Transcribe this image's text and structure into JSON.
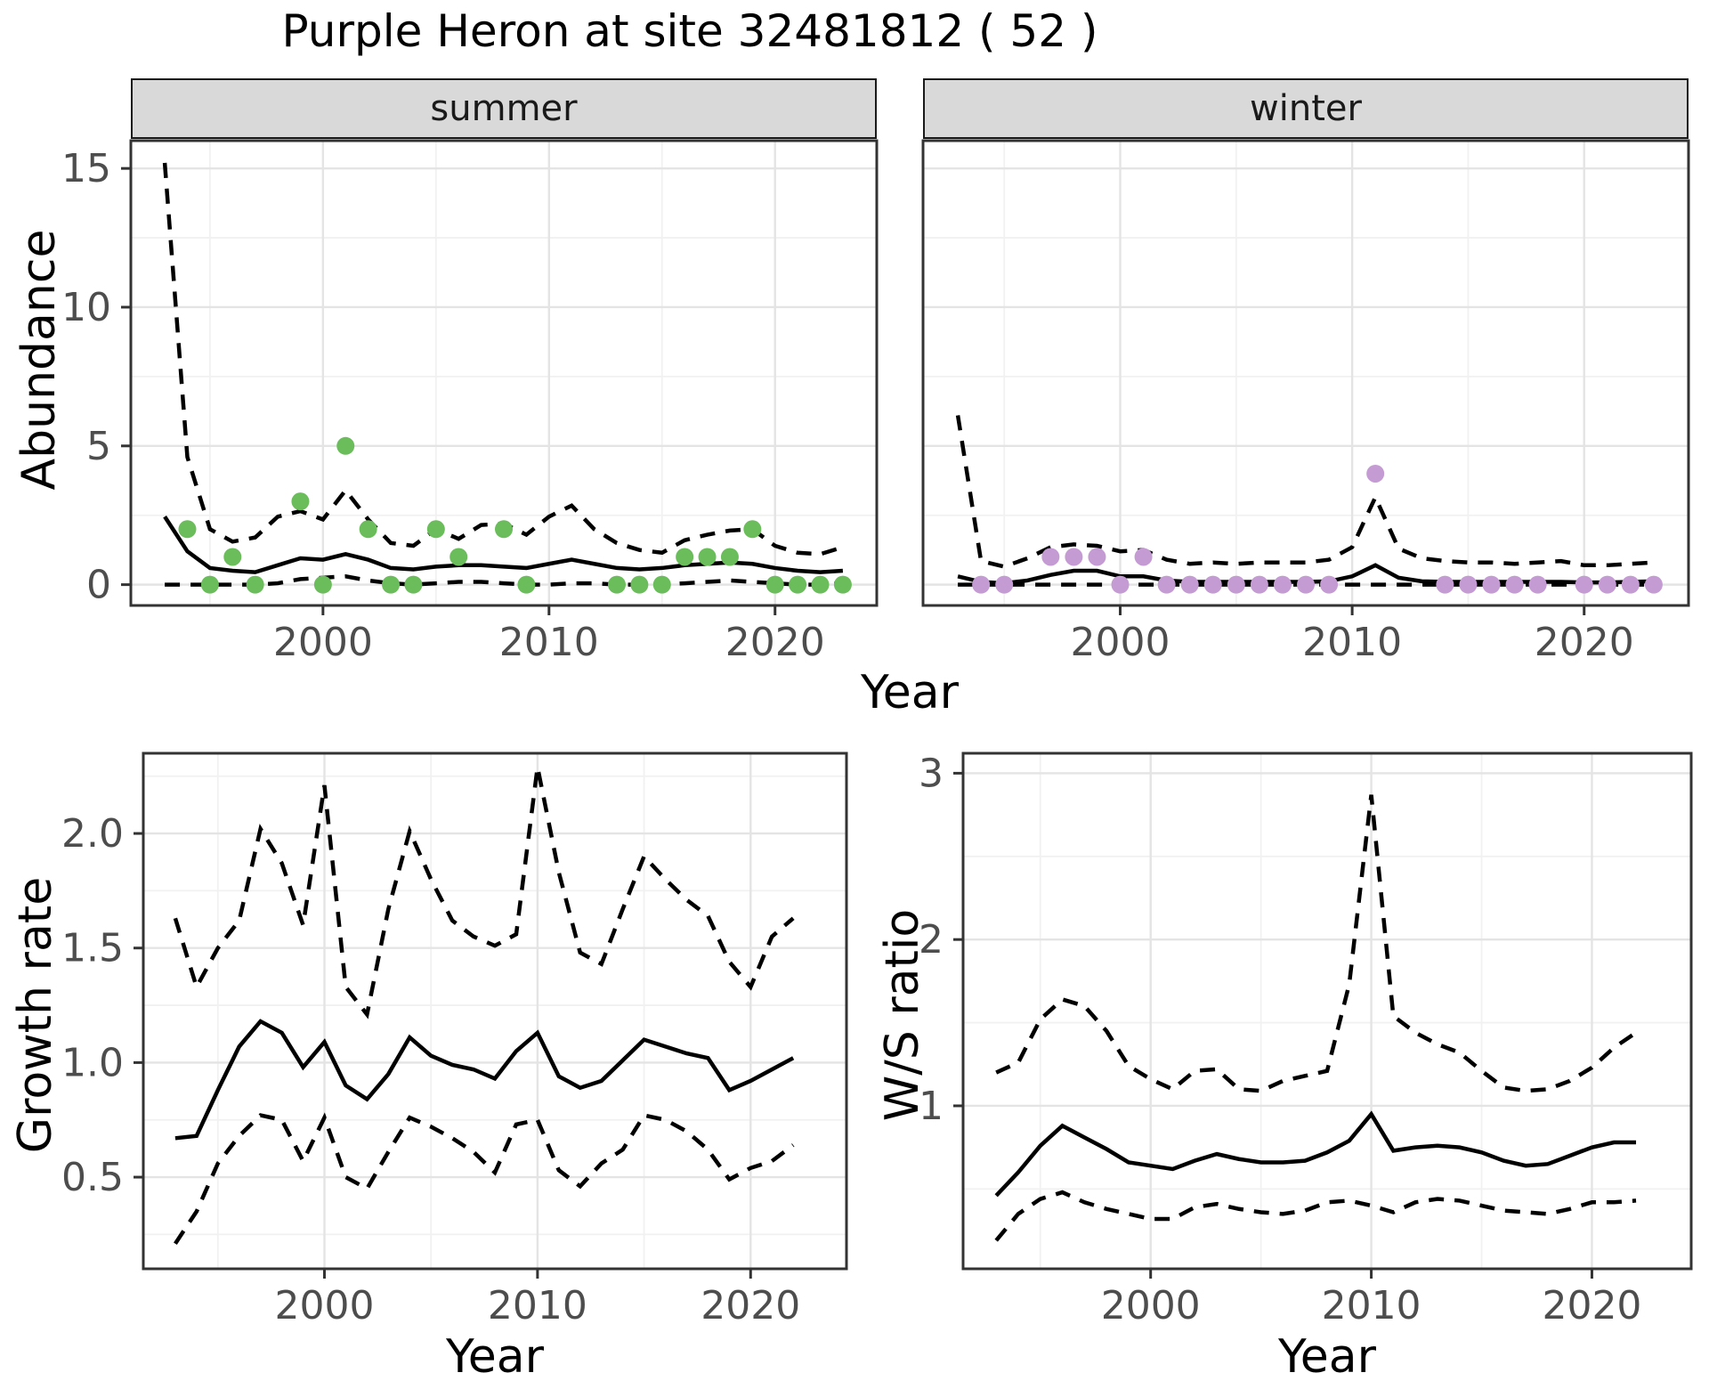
{
  "title": "Purple Heron at site 32481812 ( 52 )",
  "colors": {
    "summer_point": "#6ABD5A",
    "winter_point": "#C49BD2",
    "line": "#000000",
    "strip_background": "#D9D9D9",
    "grid_major": "#E4E4E4",
    "grid_minor": "#F1F1F1",
    "panel_border": "#333333",
    "tick_label": "#4D4D4D"
  },
  "chart_data": [
    {
      "type": "line",
      "panel": "abundance_summer",
      "facet_label": "summer",
      "xlabel": "Year",
      "ylabel": "Abundance",
      "xlim": [
        1991.5,
        2024.5
      ],
      "ylim": [
        -0.75,
        16.0
      ],
      "x_tick_values": [
        2000,
        2010,
        2020
      ],
      "x_tick_labels": [
        "2000",
        "2010",
        "2020"
      ],
      "y_tick_values": [
        0,
        5,
        10,
        15
      ],
      "y_tick_labels": [
        "0",
        "5",
        "10",
        "15"
      ],
      "grid": true,
      "legend": "none",
      "years": [
        1993,
        1994,
        1995,
        1996,
        1997,
        1998,
        1999,
        2000,
        2001,
        2002,
        2003,
        2004,
        2005,
        2006,
        2007,
        2008,
        2009,
        2010,
        2011,
        2012,
        2013,
        2014,
        2015,
        2016,
        2017,
        2018,
        2019,
        2020,
        2021,
        2022,
        2023
      ],
      "series": [
        {
          "name": "median",
          "style": "solid",
          "values": [
            2.45,
            1.2,
            0.6,
            0.5,
            0.45,
            0.7,
            0.95,
            0.9,
            1.1,
            0.9,
            0.6,
            0.55,
            0.65,
            0.7,
            0.7,
            0.65,
            0.6,
            0.75,
            0.9,
            0.75,
            0.6,
            0.55,
            0.6,
            0.7,
            0.75,
            0.8,
            0.75,
            0.6,
            0.5,
            0.45,
            0.5
          ]
        },
        {
          "name": "upper_ci",
          "style": "dashed",
          "values": [
            15.2,
            4.6,
            2.0,
            1.55,
            1.7,
            2.45,
            2.65,
            2.35,
            3.4,
            2.35,
            1.5,
            1.4,
            2.0,
            1.65,
            2.15,
            2.2,
            1.8,
            2.45,
            2.85,
            2.0,
            1.5,
            1.25,
            1.15,
            1.6,
            1.8,
            1.95,
            2.0,
            1.4,
            1.15,
            1.1,
            1.35
          ]
        },
        {
          "name": "lower_ci",
          "style": "dashed",
          "values": [
            0,
            0,
            0,
            0,
            0,
            0.05,
            0.2,
            0.25,
            0.3,
            0.15,
            0.05,
            0,
            0.05,
            0.1,
            0.1,
            0.05,
            0,
            0,
            0.05,
            0.05,
            0,
            0,
            0,
            0.05,
            0.1,
            0.15,
            0.1,
            0.05,
            0,
            0,
            0.05
          ]
        }
      ],
      "points": {
        "season": "summer",
        "color": "#6ABD5A",
        "years": [
          1994,
          1995,
          1996,
          1997,
          1999,
          2000,
          2001,
          2002,
          2003,
          2004,
          2005,
          2006,
          2008,
          2009,
          2013,
          2014,
          2015,
          2016,
          2017,
          2018,
          2019,
          2020,
          2021,
          2022,
          2023
        ],
        "values": [
          2,
          0,
          1,
          0,
          3,
          0,
          5,
          2,
          0,
          0,
          2,
          1,
          2,
          0,
          0,
          0,
          0,
          1,
          1,
          1,
          2,
          0,
          0,
          0,
          0
        ]
      }
    },
    {
      "type": "line",
      "panel": "abundance_winter",
      "facet_label": "winter",
      "xlabel": "Year",
      "ylabel": "Abundance",
      "xlim": [
        1991.5,
        2024.5
      ],
      "ylim": [
        -0.75,
        16.0
      ],
      "x_tick_values": [
        2000,
        2010,
        2020
      ],
      "x_tick_labels": [
        "2000",
        "2010",
        "2020"
      ],
      "y_tick_values": [
        0,
        5,
        10,
        15
      ],
      "y_tick_labels": [],
      "grid": true,
      "legend": "none",
      "years": [
        1993,
        1994,
        1995,
        1996,
        1997,
        1998,
        1999,
        2000,
        2001,
        2002,
        2003,
        2004,
        2005,
        2006,
        2007,
        2008,
        2009,
        2010,
        2011,
        2012,
        2013,
        2014,
        2015,
        2016,
        2017,
        2018,
        2019,
        2020,
        2021,
        2022,
        2023
      ],
      "series": [
        {
          "name": "median",
          "style": "solid",
          "values": [
            0.3,
            0.1,
            0.05,
            0.15,
            0.35,
            0.5,
            0.5,
            0.3,
            0.3,
            0.15,
            0.1,
            0.1,
            0.1,
            0.1,
            0.1,
            0.1,
            0.12,
            0.3,
            0.7,
            0.25,
            0.12,
            0.1,
            0.1,
            0.1,
            0.1,
            0.1,
            0.1,
            0.08,
            0.08,
            0.1,
            0.12
          ]
        },
        {
          "name": "upper_ci",
          "style": "dashed",
          "values": [
            6.1,
            0.85,
            0.65,
            0.95,
            1.35,
            1.45,
            1.4,
            1.2,
            1.25,
            0.9,
            0.75,
            0.8,
            0.75,
            0.8,
            0.8,
            0.8,
            0.9,
            1.35,
            3.15,
            1.3,
            0.95,
            0.85,
            0.8,
            0.8,
            0.75,
            0.8,
            0.85,
            0.7,
            0.7,
            0.75,
            0.8
          ]
        },
        {
          "name": "lower_ci",
          "style": "dashed",
          "values": [
            0,
            0,
            0,
            0,
            0,
            0,
            0,
            0,
            0,
            0,
            0,
            0,
            0,
            0,
            0,
            0,
            0,
            0,
            0,
            0,
            0,
            0,
            0,
            0,
            0,
            0,
            0,
            0,
            0,
            0,
            0
          ]
        }
      ],
      "points": {
        "season": "winter",
        "color": "#C49BD2",
        "years": [
          1994,
          1995,
          1997,
          1998,
          1999,
          2000,
          2001,
          2002,
          2003,
          2004,
          2005,
          2006,
          2007,
          2008,
          2009,
          2011,
          2014,
          2015,
          2016,
          2017,
          2018,
          2020,
          2021,
          2022,
          2023
        ],
        "values": [
          0,
          0,
          1,
          1,
          1,
          0,
          1,
          0,
          0,
          0,
          0,
          0,
          0,
          0,
          0,
          4,
          0,
          0,
          0,
          0,
          0,
          0,
          0,
          0,
          0
        ]
      }
    },
    {
      "type": "line",
      "panel": "growth_rate",
      "facet_label": "",
      "xlabel": "Year",
      "ylabel": "Growth rate",
      "xlim": [
        1991.5,
        2024.5
      ],
      "ylim": [
        0.1,
        2.35
      ],
      "x_tick_values": [
        2000,
        2010,
        2020
      ],
      "x_tick_labels": [
        "2000",
        "2010",
        "2020"
      ],
      "y_tick_values": [
        0.5,
        1.0,
        1.5,
        2.0
      ],
      "y_tick_labels": [
        "0.5",
        "1.0",
        "1.5",
        "2.0"
      ],
      "grid": true,
      "legend": "none",
      "years": [
        1993,
        1994,
        1995,
        1996,
        1997,
        1998,
        1999,
        2000,
        2001,
        2002,
        2003,
        2004,
        2005,
        2006,
        2007,
        2008,
        2009,
        2010,
        2011,
        2012,
        2013,
        2014,
        2015,
        2016,
        2017,
        2018,
        2019,
        2020,
        2021,
        2022
      ],
      "series": [
        {
          "name": "median",
          "style": "solid",
          "values": [
            0.67,
            0.68,
            0.88,
            1.07,
            1.18,
            1.13,
            0.98,
            1.09,
            0.9,
            0.84,
            0.95,
            1.11,
            1.03,
            0.99,
            0.97,
            0.93,
            1.05,
            1.13,
            0.94,
            0.89,
            0.92,
            1.01,
            1.1,
            1.07,
            1.04,
            1.02,
            0.88,
            0.92,
            0.97,
            1.02
          ]
        },
        {
          "name": "upper_ci",
          "style": "dashed",
          "values": [
            1.63,
            1.33,
            1.5,
            1.62,
            2.02,
            1.87,
            1.6,
            2.21,
            1.33,
            1.21,
            1.67,
            2.01,
            1.8,
            1.62,
            1.55,
            1.51,
            1.56,
            2.29,
            1.83,
            1.48,
            1.43,
            1.67,
            1.9,
            1.8,
            1.71,
            1.64,
            1.44,
            1.33,
            1.55,
            1.63
          ]
        },
        {
          "name": "lower_ci",
          "style": "dashed",
          "values": [
            0.21,
            0.35,
            0.56,
            0.68,
            0.77,
            0.75,
            0.57,
            0.76,
            0.5,
            0.45,
            0.61,
            0.76,
            0.72,
            0.67,
            0.61,
            0.52,
            0.73,
            0.75,
            0.53,
            0.46,
            0.56,
            0.62,
            0.77,
            0.75,
            0.7,
            0.62,
            0.49,
            0.54,
            0.57,
            0.64
          ]
        }
      ],
      "points": null
    },
    {
      "type": "line",
      "panel": "ws_ratio",
      "facet_label": "",
      "xlabel": "Year",
      "ylabel": "W/S ratio",
      "xlim": [
        1991.5,
        2024.5
      ],
      "ylim": [
        0.02,
        3.12
      ],
      "x_tick_values": [
        2000,
        2010,
        2020
      ],
      "x_tick_labels": [
        "2000",
        "2010",
        "2020"
      ],
      "y_tick_values": [
        1,
        2,
        3
      ],
      "y_tick_labels": [
        "1",
        "2",
        "3"
      ],
      "grid": true,
      "legend": "none",
      "years": [
        1993,
        1994,
        1995,
        1996,
        1997,
        1998,
        1999,
        2000,
        2001,
        2002,
        2003,
        2004,
        2005,
        2006,
        2007,
        2008,
        2009,
        2010,
        2011,
        2012,
        2013,
        2014,
        2015,
        2016,
        2017,
        2018,
        2019,
        2020,
        2021,
        2022
      ],
      "series": [
        {
          "name": "median",
          "style": "solid",
          "values": [
            0.46,
            0.6,
            0.76,
            0.88,
            0.81,
            0.74,
            0.66,
            0.64,
            0.62,
            0.67,
            0.71,
            0.68,
            0.66,
            0.66,
            0.67,
            0.72,
            0.79,
            0.95,
            0.73,
            0.75,
            0.76,
            0.75,
            0.72,
            0.67,
            0.64,
            0.65,
            0.7,
            0.75,
            0.78,
            0.78
          ]
        },
        {
          "name": "upper_ci",
          "style": "dashed",
          "values": [
            1.2,
            1.26,
            1.52,
            1.64,
            1.6,
            1.45,
            1.24,
            1.16,
            1.1,
            1.21,
            1.22,
            1.1,
            1.09,
            1.15,
            1.18,
            1.21,
            1.73,
            2.87,
            1.54,
            1.44,
            1.37,
            1.32,
            1.21,
            1.11,
            1.09,
            1.1,
            1.15,
            1.23,
            1.35,
            1.44
          ]
        },
        {
          "name": "lower_ci",
          "style": "dashed",
          "values": [
            0.19,
            0.35,
            0.44,
            0.48,
            0.42,
            0.38,
            0.35,
            0.32,
            0.32,
            0.39,
            0.41,
            0.38,
            0.36,
            0.35,
            0.37,
            0.42,
            0.43,
            0.4,
            0.36,
            0.42,
            0.44,
            0.43,
            0.4,
            0.37,
            0.36,
            0.35,
            0.38,
            0.42,
            0.42,
            0.43
          ]
        }
      ],
      "points": null
    }
  ]
}
